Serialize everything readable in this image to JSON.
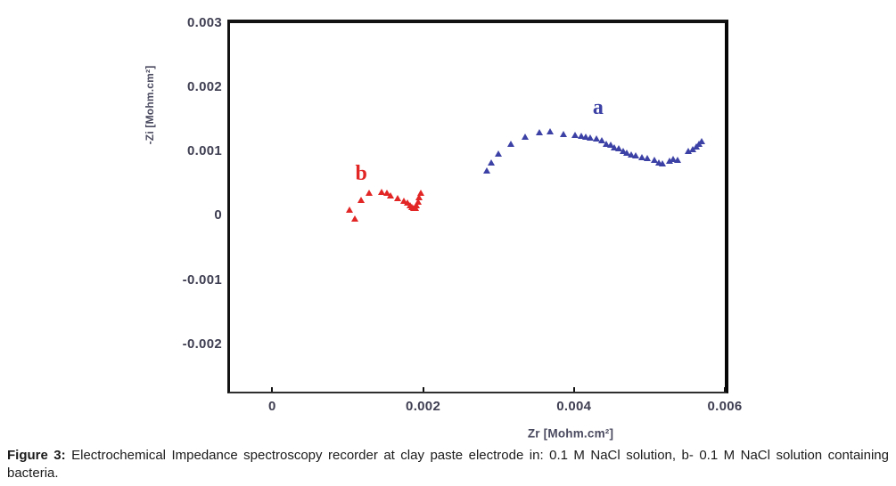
{
  "figure": {
    "caption_label": "Figure 3:",
    "caption_text": " Electrochemical Impedance spectroscopy recorder at clay paste electrode in: 0.1 M NaCl solution, b- 0.1 M NaCl solution containing bacteria."
  },
  "colors": {
    "series_a": "#3c41a5",
    "series_b": "#e22525",
    "tick_text": "#3e3e52",
    "axis_label_text": "#4a4a60",
    "plot_border": "#131313",
    "background": "#ffffff"
  },
  "chart_data": {
    "type": "scatter",
    "title": "",
    "xlabel": "Zr [Mohm.cm²]",
    "ylabel": "-Zi [Mohm.cm²]",
    "xlim": [
      -0.00056,
      0.006
    ],
    "ylim": [
      -0.00274,
      0.003
    ],
    "grid": false,
    "legend_position": "inline-labels",
    "marker_shape": "triangle-up",
    "x_ticks": [
      {
        "v": 0,
        "label": "0"
      },
      {
        "v": 0.002,
        "label": "0.002"
      },
      {
        "v": 0.004,
        "label": "0.004"
      },
      {
        "v": 0.006,
        "label": "0.006"
      }
    ],
    "y_ticks": [
      {
        "v": 0.003,
        "label": "0.003"
      },
      {
        "v": 0.002,
        "label": "0.002"
      },
      {
        "v": 0.001,
        "label": "0.001"
      },
      {
        "v": 0,
        "label": "0"
      },
      {
        "v": -0.001,
        "label": "-0.001"
      },
      {
        "v": -0.002,
        "label": "-0.002"
      }
    ],
    "series": [
      {
        "name": "a",
        "color": "#3c41a5",
        "label_pos": {
          "x": 0.00432,
          "y": 0.00168
        },
        "points": [
          [
            0.002848,
            0.000665
          ],
          [
            0.002906,
            0.000802
          ],
          [
            0.003,
            0.000939
          ],
          [
            0.003164,
            0.00109
          ],
          [
            0.003352,
            0.0012
          ],
          [
            0.003539,
            0.001269
          ],
          [
            0.00368,
            0.001283
          ],
          [
            0.003855,
            0.001242
          ],
          [
            0.004019,
            0.001228
          ],
          [
            0.004102,
            0.001214
          ],
          [
            0.00416,
            0.0012
          ],
          [
            0.004219,
            0.001187
          ],
          [
            0.004301,
            0.001173
          ],
          [
            0.004371,
            0.001146
          ],
          [
            0.00443,
            0.001091
          ],
          [
            0.004488,
            0.001077
          ],
          [
            0.004535,
            0.001036
          ],
          [
            0.004594,
            0.001022
          ],
          [
            0.004652,
            0.000981
          ],
          [
            0.004699,
            0.000953
          ],
          [
            0.004758,
            0.000926
          ],
          [
            0.004816,
            0.000912
          ],
          [
            0.004898,
            0.000885
          ],
          [
            0.004969,
            0.000871
          ],
          [
            0.005062,
            0.000843
          ],
          [
            0.005121,
            0.000802
          ],
          [
            0.005168,
            0.000775
          ],
          [
            0.005262,
            0.00083
          ],
          [
            0.00532,
            0.000857
          ],
          [
            0.005379,
            0.000843
          ],
          [
            0.00552,
            0.000981
          ],
          [
            0.005578,
            0.001008
          ],
          [
            0.005625,
            0.001049
          ],
          [
            0.00566,
            0.001091
          ],
          [
            0.005695,
            0.001132
          ]
        ]
      },
      {
        "name": "b",
        "color": "#e22525",
        "label_pos": {
          "x": 0.00118,
          "y": 0.00065
        },
        "points": [
          [
            0.001019,
            6e-05
          ],
          [
            0.00109,
            -7.7e-05
          ],
          [
            0.001172,
            0.000211
          ],
          [
            0.001289,
            0.000321
          ],
          [
            0.001453,
            0.000335
          ],
          [
            0.001523,
            0.000321
          ],
          [
            0.00157,
            0.00028
          ],
          [
            0.001664,
            0.000239
          ],
          [
            0.001746,
            0.000198
          ],
          [
            0.001793,
            0.00017
          ],
          [
            0.001828,
            0.000129
          ],
          [
            0.00185,
            0.0001
          ],
          [
            0.001875,
            8.8e-05
          ],
          [
            0.001898,
            8.2e-05
          ],
          [
            0.00191,
            0.000129
          ],
          [
            0.001934,
            0.000184
          ],
          [
            0.001945,
            0.000252
          ],
          [
            0.001969,
            0.000321
          ]
        ]
      }
    ]
  }
}
